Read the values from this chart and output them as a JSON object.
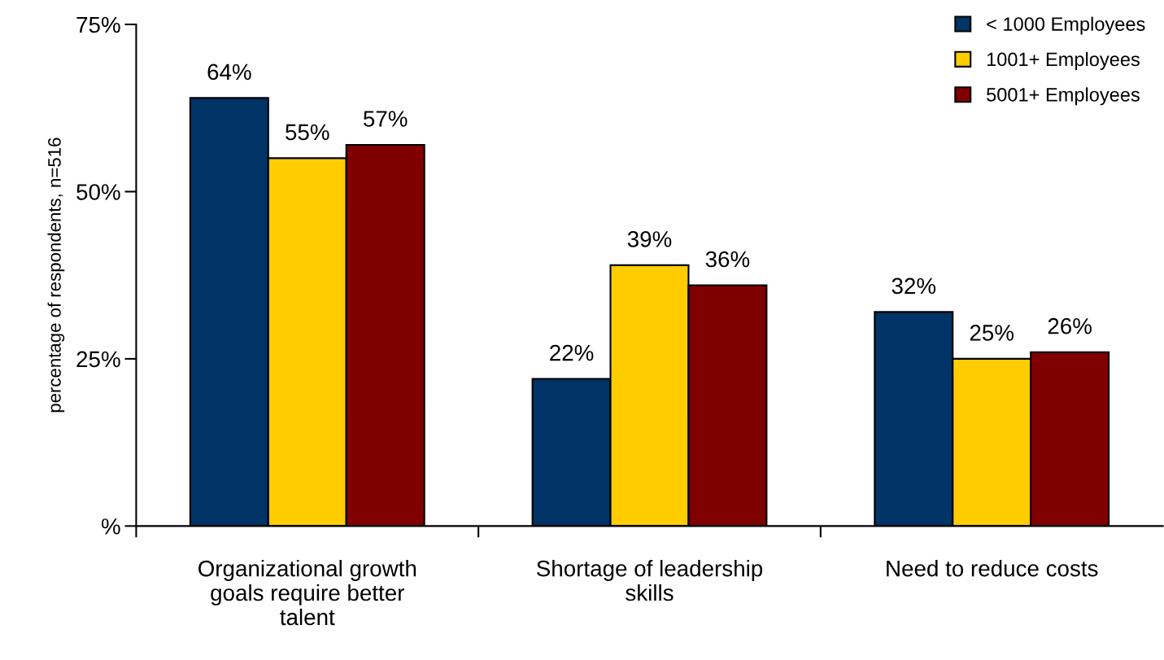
{
  "chart_data": {
    "type": "bar",
    "categories": [
      "Organizational growth\ngoals require better\ntalent",
      "Shortage of leadership\nskills",
      "Need to reduce costs"
    ],
    "ylabel": "percentage of respondents, n=516",
    "ylim": [
      0,
      75
    ],
    "yticks": [
      {
        "value": 0,
        "label": "%"
      },
      {
        "value": 25,
        "label": "25%"
      },
      {
        "value": 50,
        "label": "50%"
      },
      {
        "value": 75,
        "label": "75%"
      }
    ],
    "grid": false,
    "legend": "top right",
    "series": [
      {
        "name": "< 1000 Employees",
        "color": "#003366",
        "values": [
          64,
          22,
          32
        ],
        "value_labels": [
          "64%",
          "22%",
          "32%"
        ]
      },
      {
        "name": "1001+ Employees",
        "color": "#ffcc00",
        "values": [
          55,
          39,
          25
        ],
        "value_labels": [
          "55%",
          "39%",
          "25%"
        ]
      },
      {
        "name": "5001+ Employees",
        "color": "#800000",
        "values": [
          57,
          36,
          26
        ],
        "value_labels": [
          "57%",
          "36%",
          "26%"
        ]
      }
    ]
  }
}
